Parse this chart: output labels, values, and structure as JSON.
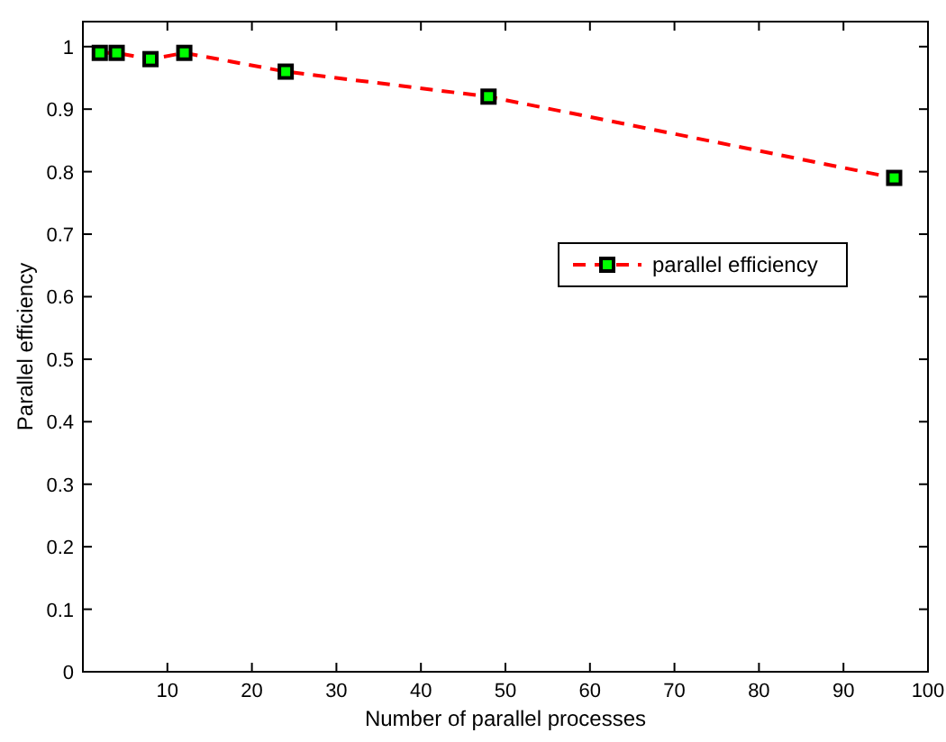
{
  "chart_data": {
    "type": "line",
    "xlabel": "Number of parallel processes",
    "ylabel": "Parallel efficiency",
    "x": [
      2,
      4,
      8,
      12,
      24,
      48,
      96
    ],
    "series": [
      {
        "name": "parallel efficiency",
        "color": "#ff0000",
        "values": [
          0.99,
          0.99,
          0.98,
          0.99,
          0.96,
          0.92,
          0.79
        ]
      }
    ],
    "xlim": [
      0,
      100
    ],
    "xticks": [
      10,
      20,
      30,
      40,
      50,
      60,
      70,
      80,
      90,
      100
    ],
    "ylim": [
      0,
      1.04
    ],
    "yticks": [
      0,
      0.1,
      0.2,
      0.3,
      0.4,
      0.5,
      0.6,
      0.7,
      0.8,
      0.9,
      1
    ],
    "legend": "right",
    "marker": "square",
    "line_style": "dashed",
    "grid": false
  }
}
